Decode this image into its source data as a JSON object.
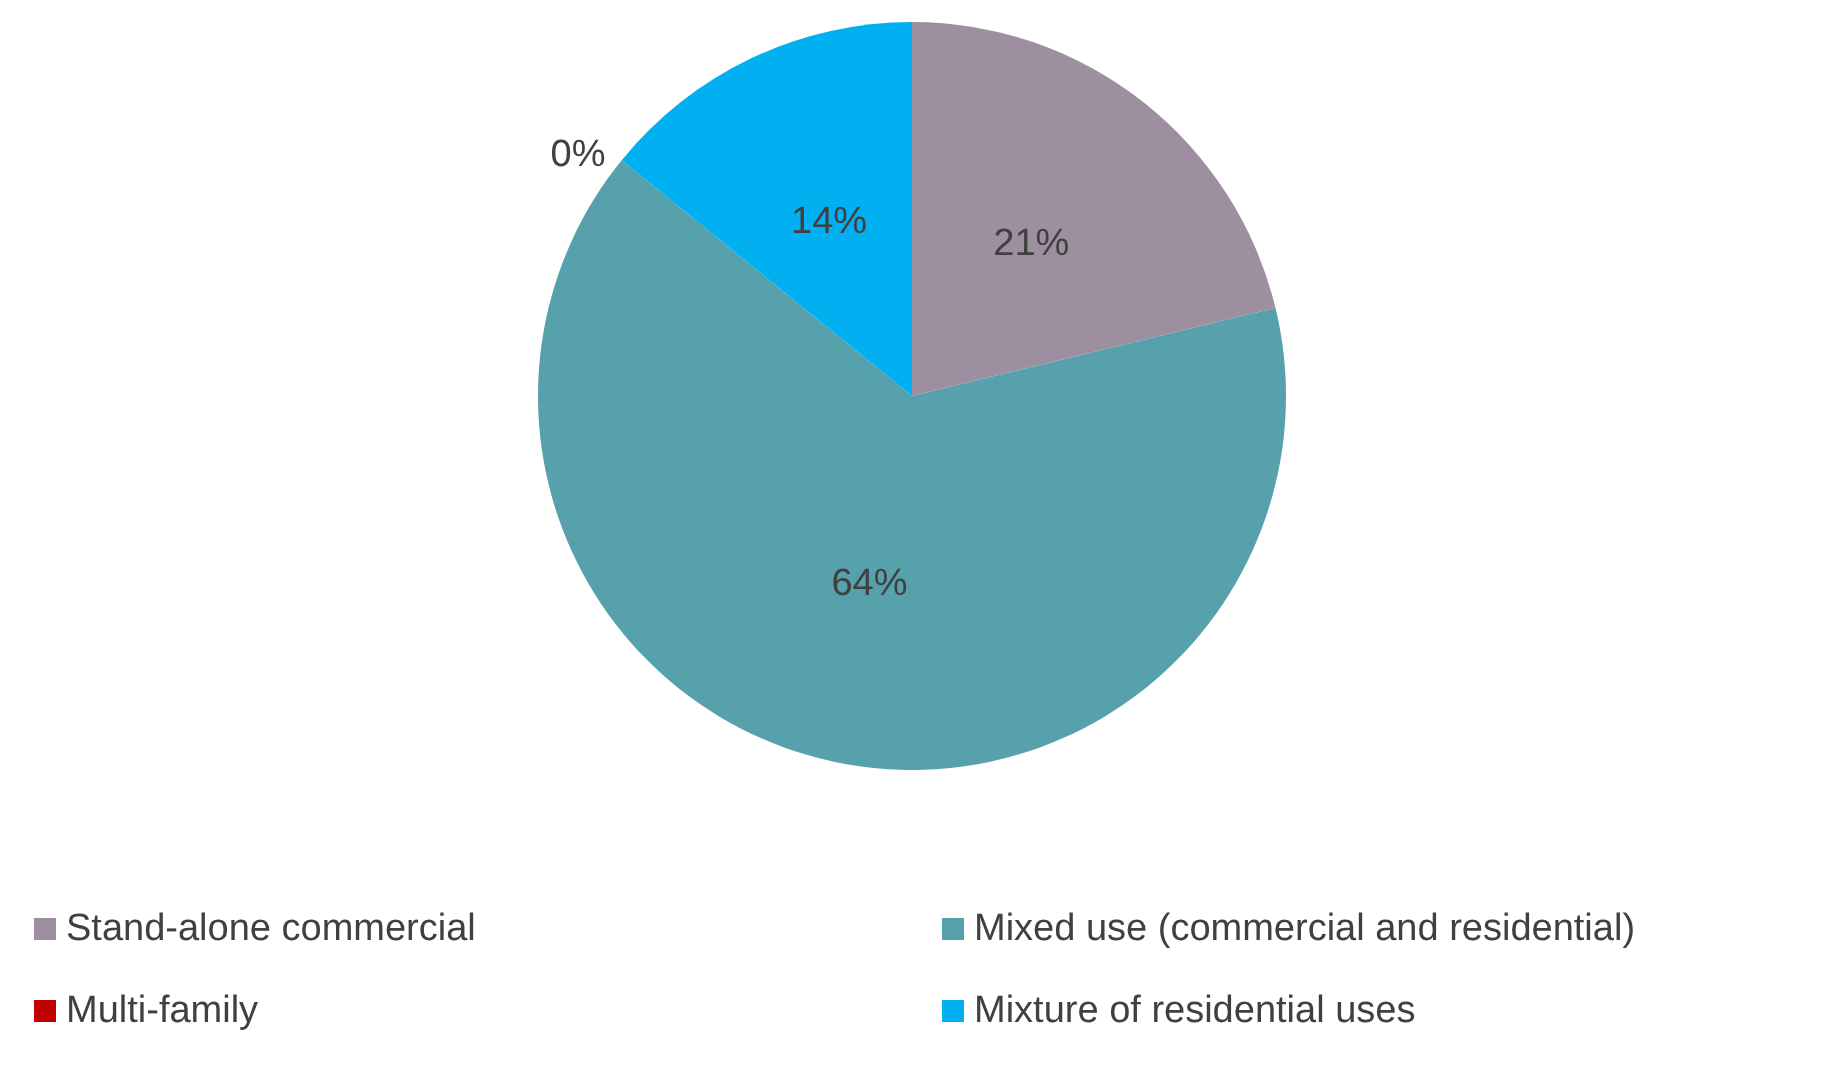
{
  "chart_data": {
    "type": "pie",
    "categories": [
      "Stand-alone commercial",
      "Mixed use (commercial and residential)",
      "Multi-family",
      "Mixture of residential uses"
    ],
    "values": [
      21,
      64,
      0,
      14
    ],
    "colors": [
      "#9e8fa0",
      "#57a1ad",
      "#c00000",
      "#00b0f0"
    ],
    "value_labels": [
      "21%",
      "64%",
      "0%",
      "14%"
    ],
    "legend": "bottom"
  }
}
